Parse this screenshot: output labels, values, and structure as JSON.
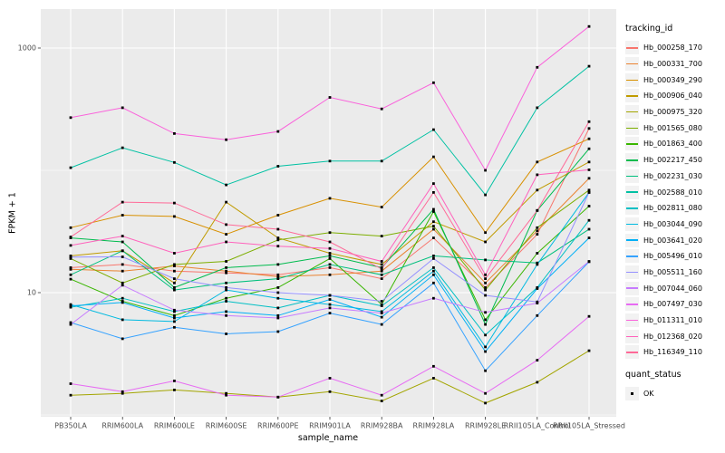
{
  "chart_data": {
    "type": "line",
    "title": "",
    "xlabel": "sample_name",
    "ylabel": "FPKM + 1",
    "y_scale": "log10",
    "ylim": [
      1,
      1600
    ],
    "grid": true,
    "legend_position": "right",
    "legend_series_title": "tracking_id",
    "legend_shape_title": "quant_status",
    "legend_shape_items": [
      {
        "label": "OK",
        "shape": "filled-square",
        "color": "#000000"
      }
    ],
    "point_shape": "filled-square",
    "point_color": "#000000",
    "y_tick_labels": [
      {
        "value": 10,
        "label": "10"
      },
      {
        "value": 1000,
        "label": "1000"
      }
    ],
    "y_minor_gridlines": [
      1,
      100
    ],
    "categories": [
      "PB350LA",
      "RRIM600LA",
      "RRIM600LE",
      "RRIM600SE",
      "RRIM600PE",
      "RRIM901LA",
      "RRIM928BA",
      "RRIM928LA",
      "RRIM928LE",
      "RRII105LA_Control",
      "RRII105LA_Stressed"
    ],
    "series": [
      {
        "name": "Hb_000258_170",
        "color": "#F8766D",
        "values": [
          16,
          17,
          15,
          14.5,
          14,
          16,
          13,
          28,
          11,
          30,
          220
        ]
      },
      {
        "name": "Hb_000331_700",
        "color": "#EA8331",
        "values": [
          15.5,
          15,
          16.5,
          15,
          13.5,
          14,
          15,
          33,
          12,
          32,
          86
        ]
      },
      {
        "name": "Hb_000349_290",
        "color": "#D89000",
        "values": [
          34,
          43,
          42,
          30,
          43,
          59,
          50,
          129,
          31,
          117,
          181
        ]
      },
      {
        "name": "Hb_000906_040",
        "color": "#C09B00",
        "values": [
          20,
          22,
          12,
          55,
          28,
          21,
          17,
          38,
          26,
          69,
          117
        ]
      },
      {
        "name": "Hb_000975_320",
        "color": "#A3A500",
        "values": [
          1.45,
          1.5,
          1.6,
          1.5,
          1.4,
          1.55,
          1.3,
          2.0,
          1.25,
          1.85,
          3.35
        ]
      },
      {
        "name": "Hb_001565_080",
        "color": "#7CAE00",
        "values": [
          19,
          12,
          17,
          18,
          27,
          31,
          29,
          35,
          10.5,
          34,
          69
        ]
      },
      {
        "name": "Hb_001863_400",
        "color": "#39B600",
        "values": [
          12.9,
          8.5,
          6.5,
          9,
          11,
          19,
          8,
          46,
          6,
          21,
          51
        ]
      },
      {
        "name": "Hb_002217_450",
        "color": "#00BB4E",
        "values": [
          28,
          26,
          11,
          16,
          17,
          20,
          16,
          48,
          5.5,
          47,
          150
        ]
      },
      {
        "name": "Hb_002231_030",
        "color": "#00BF7D",
        "values": [
          14,
          22,
          10.5,
          12,
          13,
          17,
          14,
          20,
          18.5,
          17.5,
          33
        ]
      },
      {
        "name": "Hb_002588_010",
        "color": "#00C1A3",
        "values": [
          105,
          153,
          116,
          76,
          108,
          119,
          119,
          215,
          63,
          325,
          710
        ]
      },
      {
        "name": "Hb_002811_080",
        "color": "#00BFC4",
        "values": [
          7.6,
          9,
          7,
          8.5,
          7.5,
          9.5,
          7.8,
          16,
          4.5,
          11,
          39
        ]
      },
      {
        "name": "Hb_003044_090",
        "color": "#00BAE0",
        "values": [
          8,
          6,
          5.8,
          10.5,
          9,
          8,
          7,
          15,
          3.6,
          17,
          66
        ]
      },
      {
        "name": "Hb_003641_020",
        "color": "#00B0F6",
        "values": [
          7.8,
          8.3,
          6.2,
          7,
          6.5,
          8.8,
          6.3,
          14,
          3.3,
          10.8,
          28
        ]
      },
      {
        "name": "Hb_005496_010",
        "color": "#35A2FF",
        "values": [
          5.7,
          4.2,
          5.2,
          4.6,
          4.8,
          6.8,
          5.5,
          12,
          2.3,
          6.5,
          17.9
        ]
      },
      {
        "name": "Hb_005511_160",
        "color": "#9590FF",
        "values": [
          19.5,
          19.6,
          13,
          11,
          10,
          9.5,
          8.5,
          19,
          9.5,
          8.4,
          66
        ]
      },
      {
        "name": "Hb_007044_060",
        "color": "#C77CFF",
        "values": [
          5.5,
          11.5,
          7.2,
          6.5,
          6.2,
          7.5,
          6.8,
          9,
          6.9,
          8.2,
          18
        ]
      },
      {
        "name": "Hb_007497_030",
        "color": "#E76BF3",
        "values": [
          1.8,
          1.55,
          1.9,
          1.45,
          1.4,
          2.0,
          1.45,
          2.5,
          1.5,
          2.8,
          6.4
        ]
      },
      {
        "name": "Hb_011311_010",
        "color": "#FA62DB",
        "values": [
          270,
          325,
          200,
          178,
          208,
          395,
          318,
          520,
          100,
          695,
          1500
        ]
      },
      {
        "name": "Hb_012368_020",
        "color": "#FF62BC",
        "values": [
          24.3,
          29,
          21,
          26,
          24,
          23,
          18,
          78,
          14,
          92,
          101
        ]
      },
      {
        "name": "Hb_116349_110",
        "color": "#FF6A98",
        "values": [
          28.5,
          55,
          54,
          36,
          33,
          26,
          15.6,
          66,
          13,
          47,
          250
        ]
      }
    ]
  },
  "styles": {
    "panel_bg": "#EBEBEB",
    "gridline": "#FFFFFF",
    "tick_text": "#4D4D4D",
    "axis_text": "#000000",
    "legend_key_bg": "#F2F2F2",
    "tick_mark": "#333333"
  }
}
